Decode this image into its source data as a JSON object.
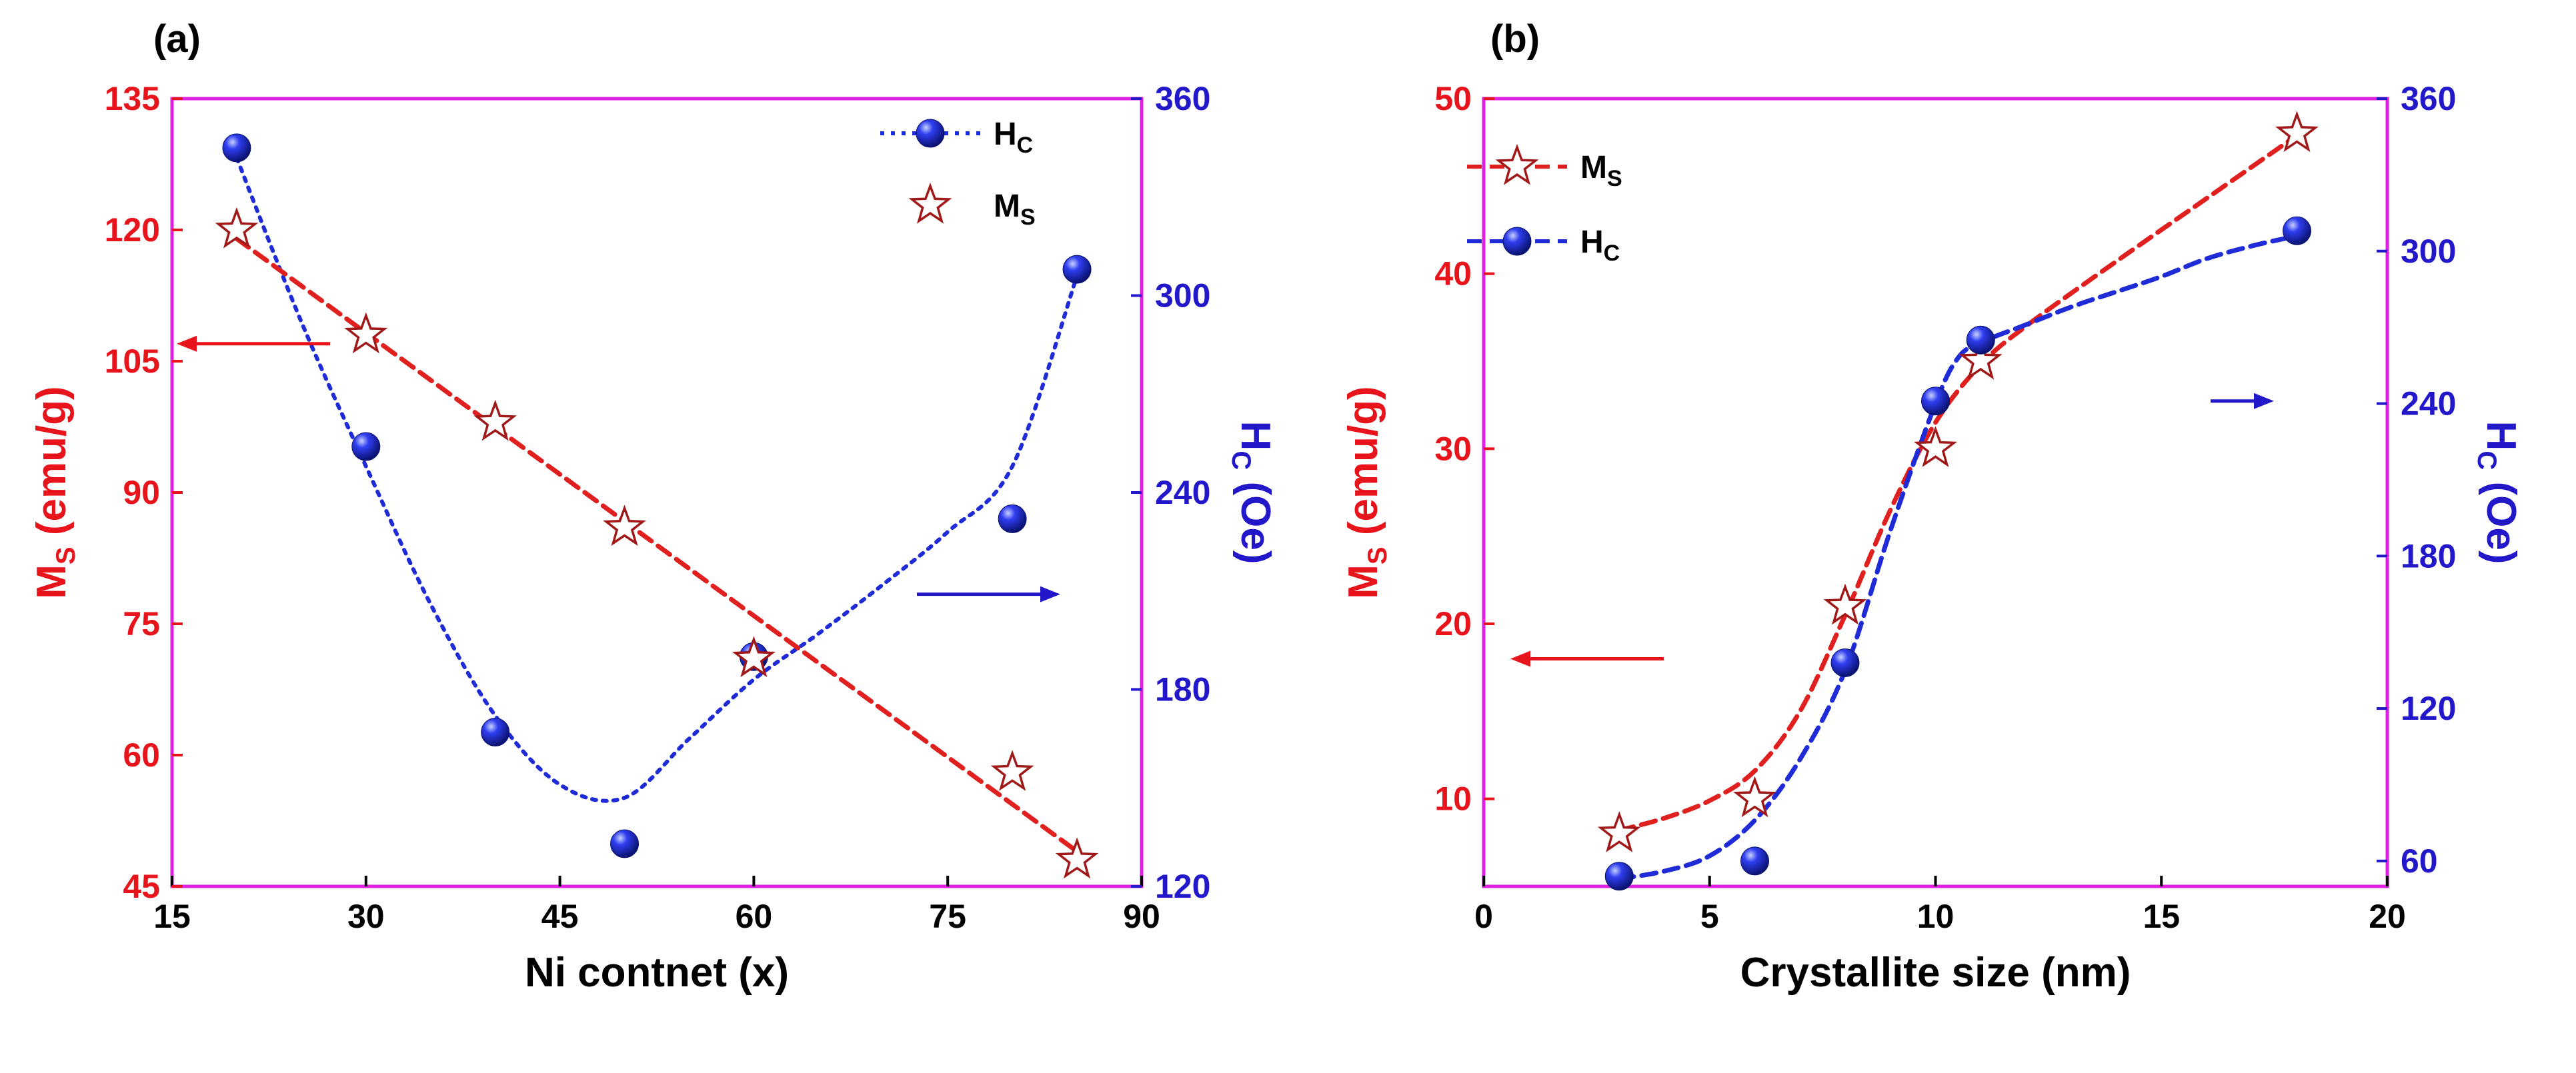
{
  "chart_data": [
    {
      "panel": "(a)",
      "type": "scatter",
      "xlabel": "Ni contnet (x)",
      "xlim": [
        15,
        90
      ],
      "xticks": [
        15,
        30,
        45,
        60,
        75,
        90
      ],
      "y_left": {
        "label": "M",
        "label_sub": "S",
        "label_unit": " (emu/g)",
        "lim": [
          45,
          135
        ],
        "ticks": [
          45,
          60,
          75,
          90,
          105,
          120,
          135
        ],
        "color": "#e8141b"
      },
      "y_right": {
        "label": "H",
        "label_sub": "C",
        "label_unit": " (Oe)",
        "lim": [
          120,
          360
        ],
        "ticks": [
          120,
          180,
          240,
          300,
          360
        ],
        "color": "#2318c9"
      },
      "series": [
        {
          "name": "H",
          "name_sub": "C",
          "axis": "right",
          "marker": "sphere",
          "line": "dotted",
          "color": "#1f2bd6",
          "x": [
            20,
            30,
            40,
            50,
            60,
            80,
            85
          ],
          "y": [
            345,
            254,
            167,
            133,
            190,
            232,
            308
          ]
        },
        {
          "name": "M",
          "name_sub": "S",
          "axis": "left",
          "marker": "star",
          "line": "dashed-linear",
          "color": "#e01f1f",
          "x": [
            20,
            30,
            40,
            50,
            60,
            80,
            85
          ],
          "y": [
            120,
            108,
            98,
            86,
            71,
            58,
            48
          ]
        }
      ],
      "fits": [
        {
          "series": "H",
          "axis": "right",
          "x": [
            20,
            25,
            30,
            35,
            40,
            45,
            50,
            55,
            60,
            65,
            70,
            75,
            80,
            85
          ],
          "y": [
            342,
            292,
            248,
            206,
            172,
            151,
            147,
            165,
            183,
            197,
            212,
            228,
            248,
            306
          ]
        },
        {
          "series": "M",
          "axis": "left",
          "x": [
            20,
            85
          ],
          "y": [
            119,
            49
          ]
        }
      ],
      "annotations": [
        {
          "type": "arrow",
          "direction": "left",
          "target_axis": "left",
          "color": "#e8141b",
          "at_y": 107
        },
        {
          "type": "arrow",
          "direction": "right",
          "target_axis": "right",
          "color": "#2318c9",
          "at_y": 209
        }
      ]
    },
    {
      "panel": "(b)",
      "type": "scatter",
      "xlabel": "Crystallite size (nm)",
      "xlim": [
        0,
        20
      ],
      "xticks": [
        0,
        5,
        10,
        15,
        20
      ],
      "y_left": {
        "label": "M",
        "label_sub": "S",
        "label_unit": " (emu/g)",
        "lim": [
          5,
          50
        ],
        "ticks": [
          10,
          20,
          30,
          40,
          50
        ],
        "color": "#e8141b"
      },
      "y_right": {
        "label": "H",
        "label_sub": "C",
        "label_unit": " (Oe)",
        "lim": [
          50,
          360
        ],
        "ticks": [
          60,
          120,
          180,
          240,
          300,
          360
        ],
        "color": "#2318c9"
      },
      "series": [
        {
          "name": "M",
          "name_sub": "S",
          "axis": "left",
          "marker": "star",
          "line": "dashed",
          "color": "#e01f1f",
          "x": [
            3,
            6,
            8,
            10,
            11,
            18
          ],
          "y": [
            8,
            10,
            21,
            30,
            35,
            48
          ]
        },
        {
          "name": "H",
          "name_sub": "C",
          "axis": "right",
          "marker": "sphere",
          "line": "dashed",
          "color": "#1f2bd6",
          "x": [
            3,
            6,
            8,
            10,
            11,
            18
          ],
          "y": [
            54,
            60,
            138,
            241,
            265,
            308
          ]
        }
      ],
      "fits": [
        {
          "series": "M",
          "axis": "left",
          "x": [
            3,
            4,
            5,
            6,
            7,
            8,
            9,
            10,
            11,
            12,
            14,
            16,
            18
          ],
          "y": [
            8.2,
            8.9,
            9.9,
            11.6,
            15.0,
            20.5,
            26.5,
            31.5,
            34.8,
            37.0,
            40.7,
            44.3,
            47.9
          ]
        },
        {
          "series": "H",
          "axis": "right",
          "x": [
            3,
            4,
            5,
            6,
            7,
            8,
            9,
            10,
            10.5,
            11,
            12,
            13,
            14,
            15,
            16,
            17,
            18
          ],
          "y": [
            53,
            56,
            62,
            76,
            100,
            135,
            190,
            240,
            258,
            264,
            271,
            278,
            284,
            290,
            297,
            302,
            306
          ]
        }
      ],
      "annotations": [
        {
          "type": "arrow",
          "direction": "left",
          "target_axis": "left",
          "color": "#e8141b",
          "at_y": 18
        },
        {
          "type": "arrow",
          "direction": "right",
          "target_axis": "right",
          "color": "#2318c9",
          "at_y": 241
        }
      ]
    }
  ],
  "axis_frame_color": "#e020e0"
}
